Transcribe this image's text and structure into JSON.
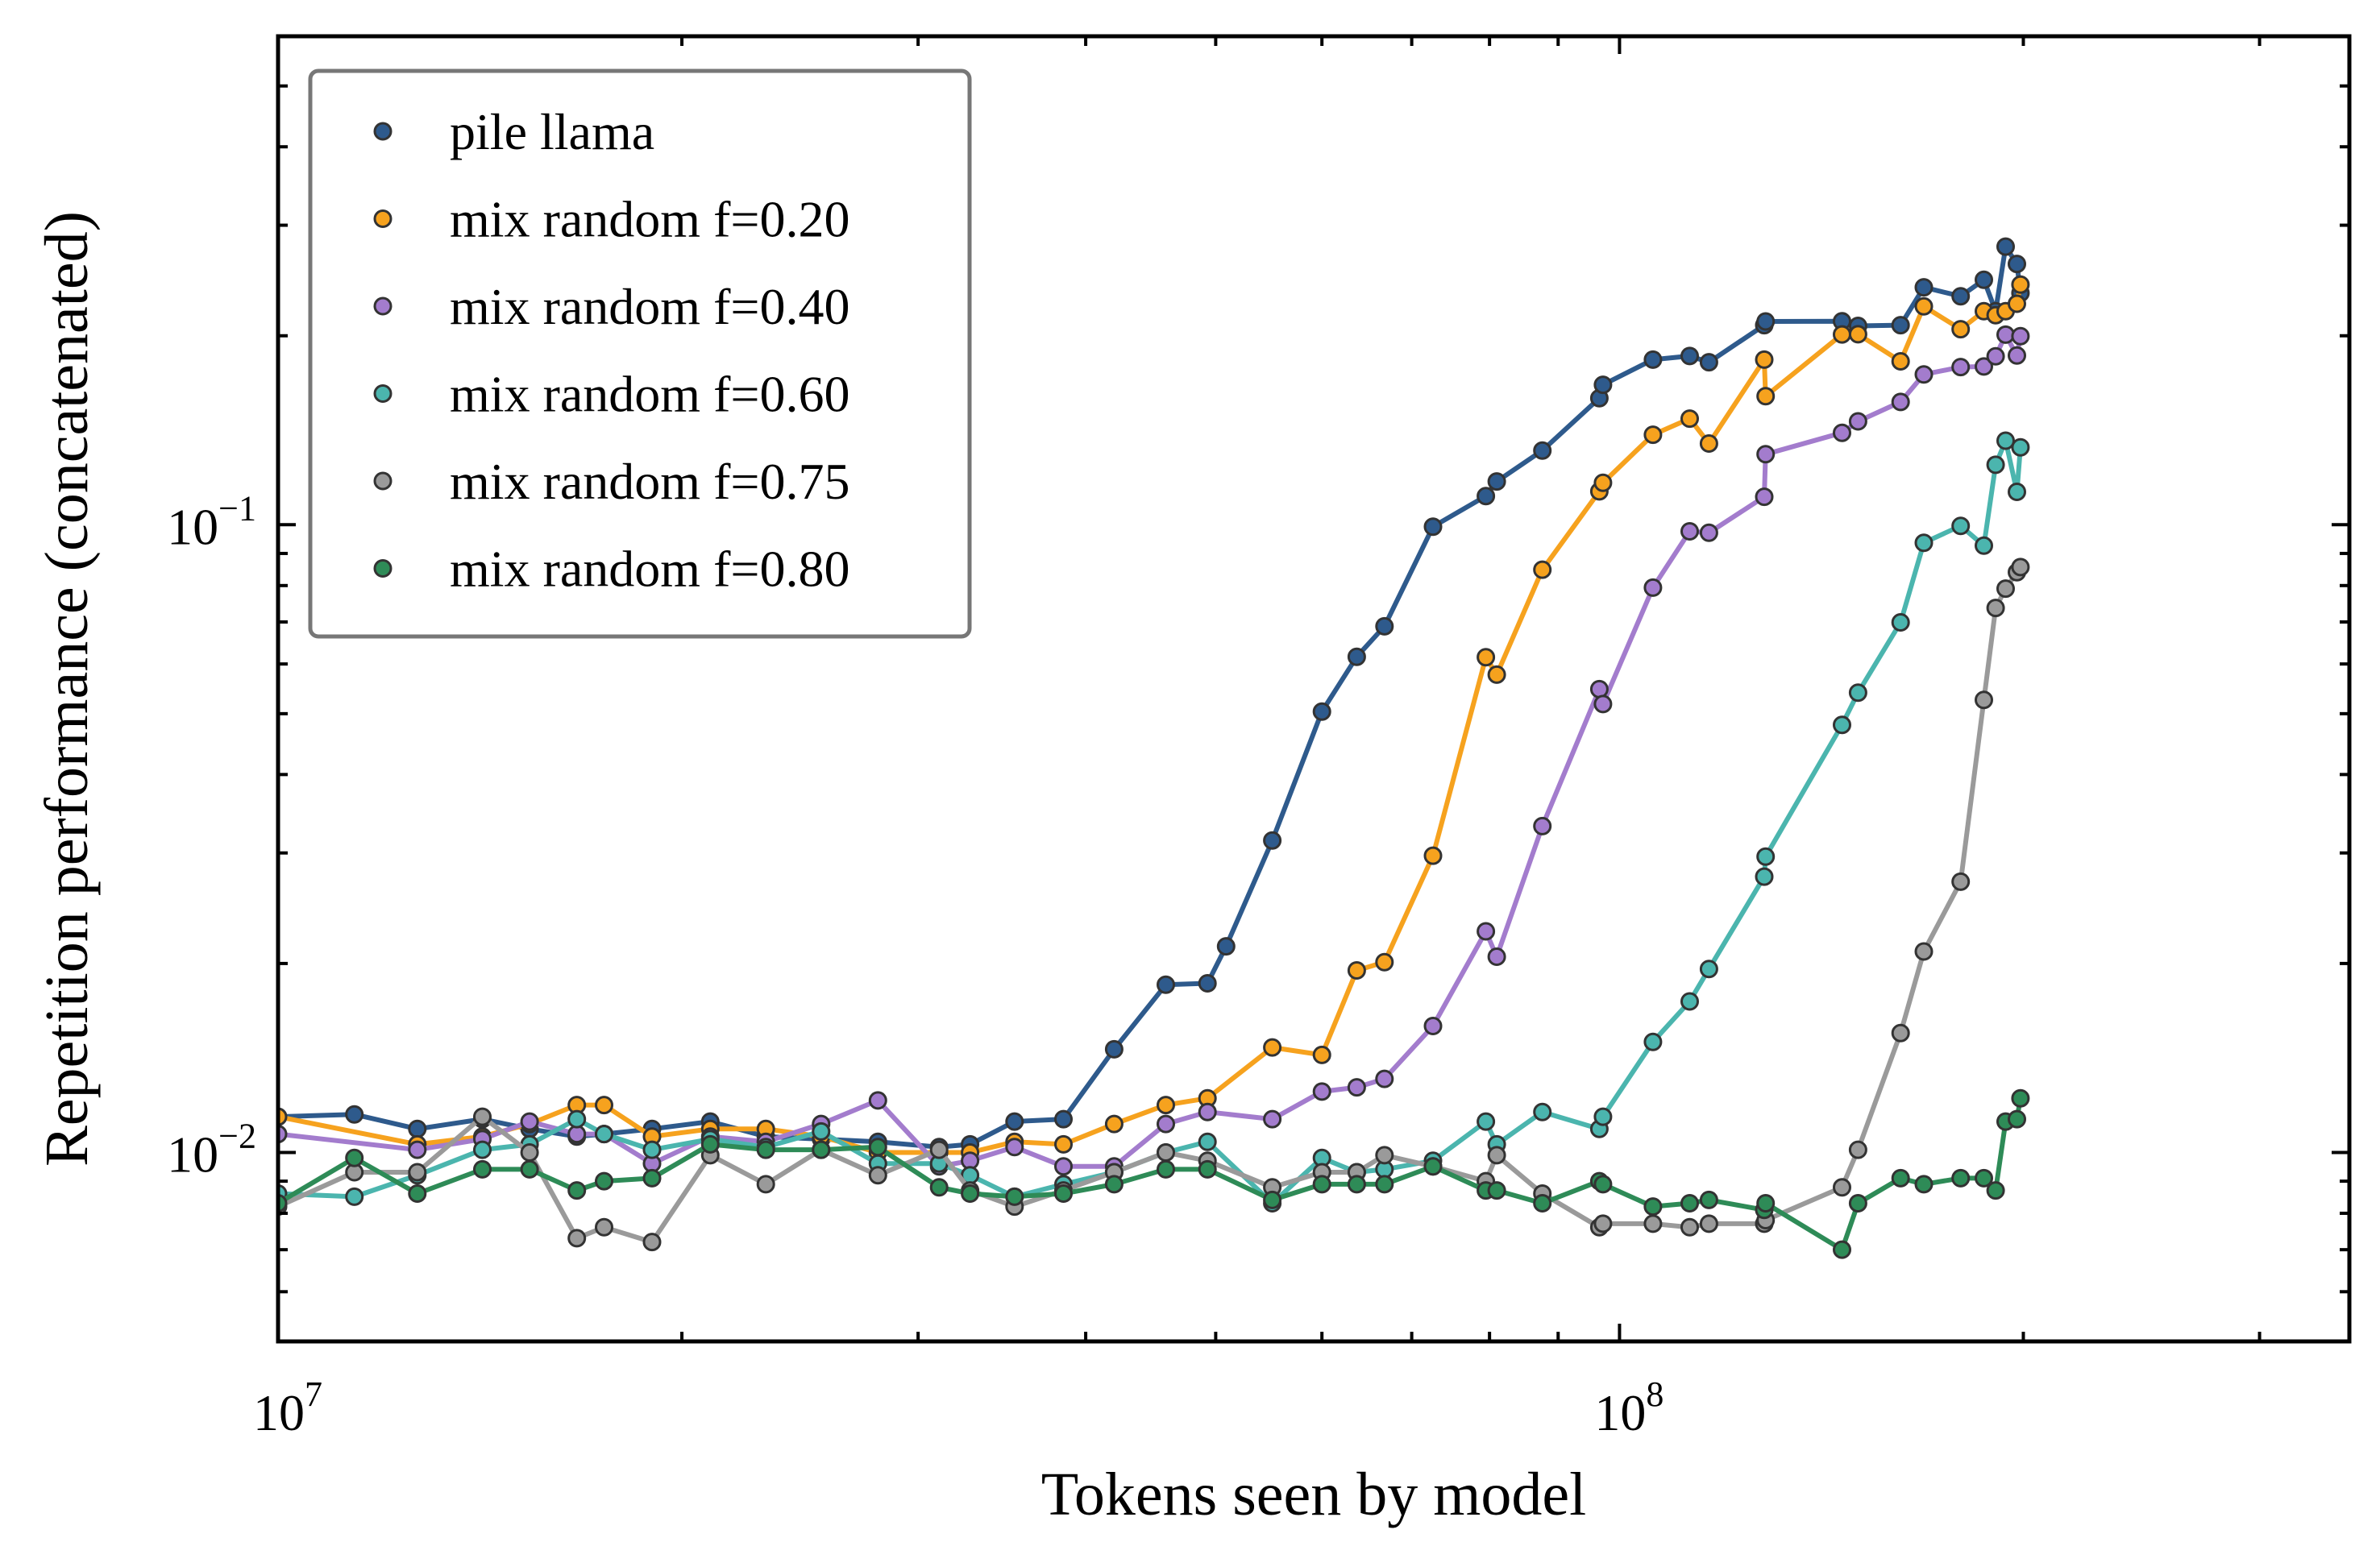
{
  "chart_data": {
    "type": "line",
    "xlabel": "Tokens seen by model",
    "ylabel": "Repetition performance (concatenated)",
    "xscale": "log",
    "yscale": "log",
    "xlim": [
      10000000,
      350000000
    ],
    "ylim": [
      0.005,
      0.6
    ],
    "x_ticks": [
      {
        "value": 10000000,
        "base": "10",
        "exp": "7"
      },
      {
        "value": 100000000,
        "base": "10",
        "exp": "8"
      }
    ],
    "y_ticks": [
      {
        "value": 0.01,
        "base": "10",
        "exp": "−2"
      },
      {
        "value": 0.1,
        "base": "10",
        "exp": "−1"
      }
    ],
    "legend_position": "top-left",
    "series": [
      {
        "name": "pile llama",
        "color": "#2e5a8c",
        "x": [
          10000000,
          11400000,
          12700000,
          14200000,
          15400000,
          16700000,
          17500000,
          19000000,
          21000000,
          23100000,
          25400000,
          28000000,
          31100000,
          32800000,
          35400000,
          38500000,
          42000000,
          45900000,
          49300000,
          50900000,
          55100000,
          60000000,
          63700000,
          66800000,
          72600000,
          79500000,
          81000000,
          87600000,
          96600000,
          97200000,
          105900000,
          112800000,
          116600000,
          128200000,
          128500000,
          146500000,
          150600000,
          162000000,
          168600000,
          179600000,
          186900000,
          190700000,
          194000000,
          197800000,
          199000000
        ],
        "y": [
          0.0114,
          0.0115,
          0.0109,
          0.0113,
          0.0109,
          0.0106,
          0.0107,
          0.0109,
          0.0112,
          0.0106,
          0.0105,
          0.0104,
          0.0102,
          0.0103,
          0.0112,
          0.0113,
          0.0146,
          0.0185,
          0.0186,
          0.0213,
          0.0314,
          0.0504,
          0.0616,
          0.0689,
          0.0993,
          0.1111,
          0.1172,
          0.1313,
          0.1591,
          0.1671,
          0.1832,
          0.1857,
          0.1815,
          0.2079,
          0.2108,
          0.2109,
          0.2074,
          0.2079,
          0.2389,
          0.2312,
          0.2456,
          0.2189,
          0.2774,
          0.2603,
          0.2339
        ]
      },
      {
        "name": "mix random f=0.20",
        "color": "#f6a21e",
        "x": [
          10000000,
          12700000,
          14200000,
          15400000,
          16700000,
          17500000,
          19000000,
          21000000,
          23100000,
          25400000,
          28000000,
          31100000,
          32800000,
          35400000,
          38500000,
          42000000,
          45900000,
          49300000,
          55100000,
          60000000,
          63700000,
          66800000,
          72600000,
          79500000,
          81000000,
          87600000,
          96600000,
          97200000,
          105900000,
          112800000,
          116600000,
          128200000,
          128500000,
          146500000,
          150600000,
          162000000,
          168600000,
          179600000,
          186900000,
          190700000,
          194000000,
          197800000,
          199000000
        ],
        "y": [
          0.0114,
          0.0103,
          0.0106,
          0.0111,
          0.0119,
          0.0119,
          0.0106,
          0.0109,
          0.0109,
          0.0106,
          0.01,
          0.01,
          0.01,
          0.0104,
          0.0103,
          0.0111,
          0.0119,
          0.0122,
          0.0147,
          0.0143,
          0.0195,
          0.0201,
          0.0297,
          0.0615,
          0.0577,
          0.0848,
          0.113,
          0.1166,
          0.1391,
          0.1476,
          0.1347,
          0.1832,
          0.1602,
          0.201,
          0.2011,
          0.1821,
          0.2228,
          0.2049,
          0.2189,
          0.2156,
          0.2189,
          0.2249,
          0.2413
        ]
      },
      {
        "name": "mix random f=0.40",
        "color": "#a37ccd",
        "x": [
          10000000,
          12700000,
          14200000,
          15400000,
          16700000,
          17500000,
          19000000,
          21000000,
          23100000,
          25400000,
          28000000,
          31100000,
          32800000,
          35400000,
          38500000,
          42000000,
          45900000,
          49300000,
          55100000,
          60000000,
          63700000,
          66800000,
          72600000,
          79500000,
          81000000,
          87600000,
          96600000,
          97200000,
          105900000,
          112800000,
          116600000,
          128200000,
          128500000,
          146500000,
          150600000,
          162000000,
          168600000,
          179600000,
          186900000,
          190700000,
          194000000,
          197800000,
          199000000
        ],
        "y": [
          0.0107,
          0.0101,
          0.0105,
          0.0112,
          0.0107,
          0.0107,
          0.0096,
          0.0106,
          0.0104,
          0.0111,
          0.0121,
          0.0095,
          0.0097,
          0.0102,
          0.0095,
          0.0095,
          0.0111,
          0.0116,
          0.0113,
          0.0125,
          0.0127,
          0.0131,
          0.0159,
          0.0225,
          0.0205,
          0.0331,
          0.0547,
          0.0518,
          0.0794,
          0.0976,
          0.0971,
          0.1108,
          0.1295,
          0.1401,
          0.1461,
          0.1569,
          0.1736,
          0.1783,
          0.1787,
          0.1855,
          0.2008,
          0.186,
          0.1997
        ]
      },
      {
        "name": "mix random f=0.60",
        "color": "#4bb5ae",
        "x": [
          10000000,
          11400000,
          12700000,
          14200000,
          15400000,
          16700000,
          17500000,
          19000000,
          21000000,
          23100000,
          25400000,
          28000000,
          31100000,
          32800000,
          35400000,
          38500000,
          42000000,
          45900000,
          49300000,
          55100000,
          60000000,
          63700000,
          66800000,
          72600000,
          79500000,
          81000000,
          87600000,
          96600000,
          97200000,
          105900000,
          112800000,
          116600000,
          128200000,
          128500000,
          146500000,
          150600000,
          162000000,
          168600000,
          179600000,
          186900000,
          190700000,
          194000000,
          197800000,
          199000000
        ],
        "y": [
          0.0086,
          0.0085,
          0.0092,
          0.0101,
          0.0103,
          0.0113,
          0.0107,
          0.0101,
          0.0105,
          0.0102,
          0.0108,
          0.0096,
          0.0096,
          0.0092,
          0.0085,
          0.0089,
          0.0093,
          0.01,
          0.0104,
          0.0083,
          0.0098,
          0.0093,
          0.0094,
          0.0097,
          0.0112,
          0.0103,
          0.0116,
          0.0109,
          0.0114,
          0.015,
          0.0174,
          0.0196,
          0.0275,
          0.0296,
          0.048,
          0.054,
          0.0699,
          0.0936,
          0.0996,
          0.0926,
          0.1246,
          0.1361,
          0.1128,
          0.1328
        ]
      },
      {
        "name": "mix random f=0.75",
        "color": "#9a9a9a",
        "x": [
          10000000,
          11400000,
          12700000,
          14200000,
          15400000,
          16700000,
          17500000,
          19000000,
          21000000,
          23100000,
          25400000,
          28000000,
          31100000,
          32800000,
          35400000,
          38500000,
          42000000,
          45900000,
          49300000,
          55100000,
          60000000,
          63700000,
          66800000,
          72600000,
          79500000,
          81000000,
          87600000,
          96600000,
          97200000,
          105900000,
          112800000,
          116600000,
          128200000,
          128500000,
          146500000,
          150600000,
          162000000,
          168600000,
          179600000,
          186900000,
          190700000,
          194000000,
          197800000,
          199000000
        ],
        "y": [
          0.0082,
          0.0093,
          0.0093,
          0.0114,
          0.01,
          0.0073,
          0.0076,
          0.0072,
          0.0099,
          0.0089,
          0.0101,
          0.0092,
          0.0101,
          0.0087,
          0.0082,
          0.0087,
          0.0093,
          0.01,
          0.0097,
          0.0088,
          0.0093,
          0.0093,
          0.0099,
          0.0095,
          0.009,
          0.0099,
          0.0086,
          0.0076,
          0.0077,
          0.0077,
          0.0076,
          0.0077,
          0.0077,
          0.0078,
          0.0088,
          0.0101,
          0.0155,
          0.0209,
          0.027,
          0.0526,
          0.0737,
          0.0791,
          0.084,
          0.0856
        ]
      },
      {
        "name": "mix random f=0.80",
        "color": "#2e8b57",
        "x": [
          10000000,
          11400000,
          12700000,
          14200000,
          15400000,
          16700000,
          17500000,
          19000000,
          21000000,
          23100000,
          25400000,
          28000000,
          31100000,
          32800000,
          35400000,
          38500000,
          42000000,
          45900000,
          49300000,
          55100000,
          60000000,
          63700000,
          66800000,
          72600000,
          79500000,
          81000000,
          87600000,
          96600000,
          97200000,
          105900000,
          112800000,
          116600000,
          128200000,
          128500000,
          146500000,
          150600000,
          162000000,
          168600000,
          179600000,
          186900000,
          190700000,
          194000000,
          197800000,
          199000000
        ],
        "y": [
          0.0083,
          0.0098,
          0.0086,
          0.0094,
          0.0094,
          0.0087,
          0.009,
          0.0091,
          0.0103,
          0.0101,
          0.0101,
          0.0102,
          0.0088,
          0.0086,
          0.0085,
          0.0086,
          0.0089,
          0.0094,
          0.0094,
          0.0084,
          0.0089,
          0.0089,
          0.0089,
          0.0095,
          0.0087,
          0.0087,
          0.0083,
          0.009,
          0.0089,
          0.0082,
          0.0083,
          0.0084,
          0.0081,
          0.0083,
          0.007,
          0.0083,
          0.0091,
          0.0089,
          0.0091,
          0.0091,
          0.0087,
          0.0112,
          0.0113,
          0.0122
        ]
      }
    ]
  }
}
